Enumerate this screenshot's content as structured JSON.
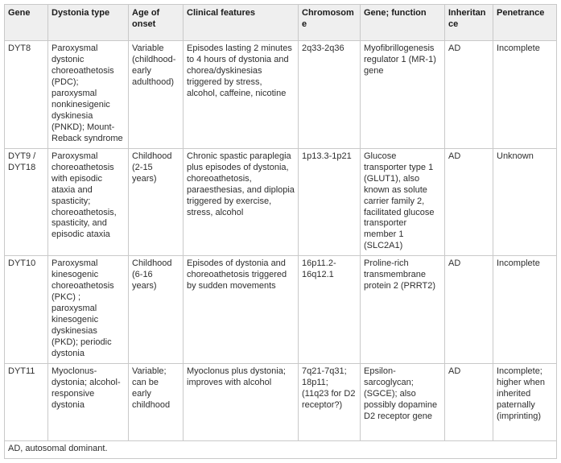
{
  "table": {
    "columns": [
      "Gene",
      "Dystonia type",
      "Age of onset",
      "Clinical features",
      "Chromosome",
      "Gene; function",
      "Inheritance",
      "Penetrance"
    ],
    "rows": [
      {
        "gene": "DYT8",
        "dystonia_type": "Paroxysmal dystonic choreoathetosis (PDC); paroxysmal nonkinesigenic dyskinesia (PNKD); Mount-Reback syndrome",
        "age_of_onset": "Variable (childhood-early adulthood)",
        "clinical_features": "Episodes lasting 2 minutes to 4 hours of dystonia and chorea/dyskinesias triggered by stress, alcohol, caffeine, nicotine",
        "chromosome": "2q33-2q36",
        "gene_function": "Myofibrillogenesis regulator 1 (MR-1) gene",
        "inheritance": "AD",
        "penetrance": "Incomplete"
      },
      {
        "gene": "DYT9 / DYT18",
        "dystonia_type": "Paroxysmal choreoathetosis with episodic ataxia and spasticity; choreoathetosis, spasticity, and episodic ataxia",
        "age_of_onset": "Childhood (2-15 years)",
        "clinical_features": "Chronic spastic paraplegia plus episodes of dystonia, choreoathetosis, paraesthesias, and diplopia triggered by exercise, stress, alcohol",
        "chromosome": "1p13.3-1p21",
        "gene_function": "Glucose transporter type 1 (GLUT1), also known as solute carrier family 2, facilitated glucose transporter member 1 (SLC2A1)",
        "inheritance": "AD",
        "penetrance": "Unknown"
      },
      {
        "gene": "DYT10",
        "dystonia_type": "Paroxysmal kinesogenic choreoathetosis (PKC) ; paroxysmal kinesogenic dyskinesias (PKD); periodic dystonia",
        "age_of_onset": "Childhood (6-16 years)",
        "clinical_features": "Episodes of dystonia and choreoathetosis triggered by sudden movements",
        "chromosome": "16p11.2-16q12.1",
        "gene_function": "Proline-rich transmembrane protein 2 (PRRT2)",
        "inheritance": "AD",
        "penetrance": "Incomplete"
      },
      {
        "gene": "DYT11",
        "dystonia_type": "Myoclonus-dystonia; alcohol-responsive dystonia",
        "age_of_onset": "Variable; can be early childhood",
        "clinical_features": "Myoclonus plus dystonia; improves with alcohol",
        "chromosome": "7q21-7q31; 18p11; (11q23 for D2 receptor?)",
        "gene_function": "Epsilon-sarcoglycan; (SGCE); also possibly dopamine D2 receptor gene",
        "inheritance": "AD",
        "penetrance": "Incomplete; higher when inherited paternally (imprinting)"
      }
    ],
    "footnote": "AD, autosomal dominant."
  },
  "colors": {
    "header_bg": "#efefef",
    "border": "#c9c9c9",
    "text": "#2e2e2e"
  }
}
